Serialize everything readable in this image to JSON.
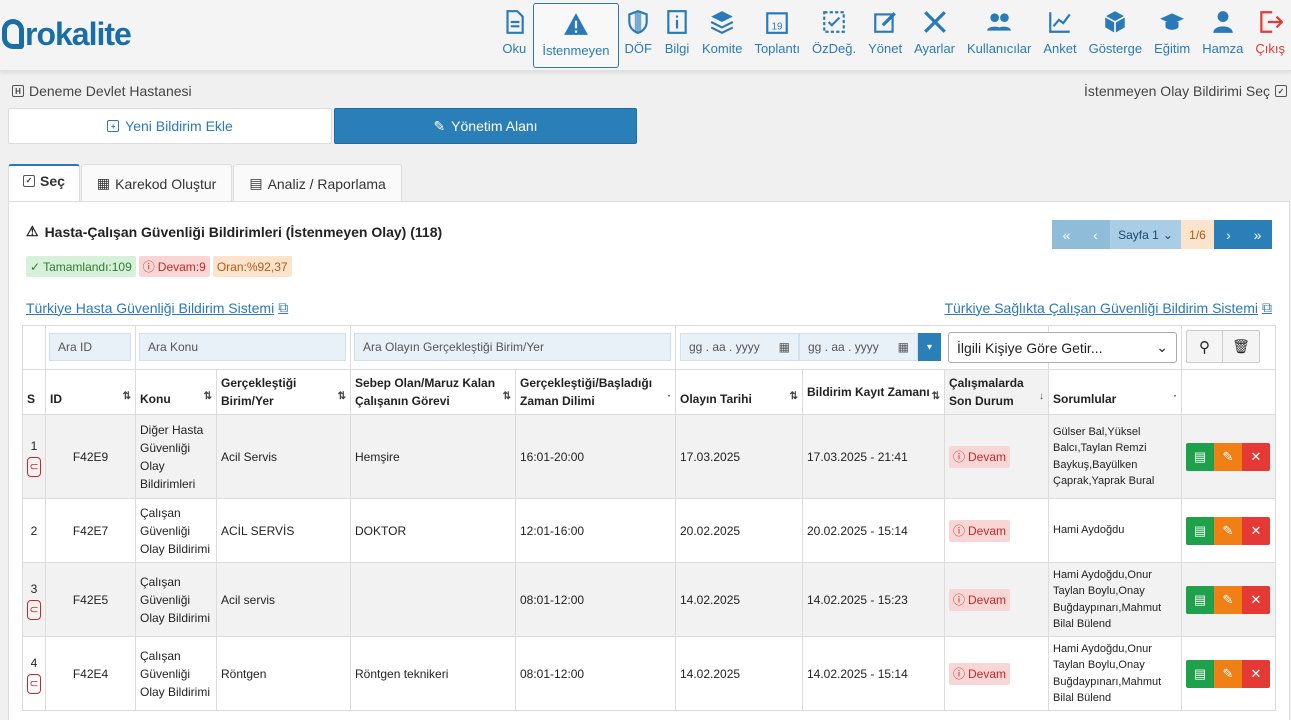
{
  "logo": "Prokalite",
  "nav": [
    {
      "label": "Oku",
      "icon": "document-icon"
    },
    {
      "label": "İstenmeyen",
      "icon": "warning-icon",
      "active": true
    },
    {
      "label": "DÖF",
      "icon": "shield-icon"
    },
    {
      "label": "Bilgi",
      "icon": "info-icon"
    },
    {
      "label": "Komite",
      "icon": "layers-icon"
    },
    {
      "label": "Toplantı",
      "icon": "calendar-icon"
    },
    {
      "label": "ÖzDeğ.",
      "icon": "checklist-icon"
    },
    {
      "label": "Yönet",
      "icon": "edit-icon"
    },
    {
      "label": "Ayarlar",
      "icon": "tools-icon"
    },
    {
      "label": "Kullanıcılar",
      "icon": "users-icon"
    },
    {
      "label": "Anket",
      "icon": "chart-icon"
    },
    {
      "label": "Gösterge",
      "icon": "cube-icon"
    },
    {
      "label": "Eğitim",
      "icon": "graduation-cap-icon"
    },
    {
      "label": "Hamza",
      "icon": "user-icon"
    },
    {
      "label": "Çıkış",
      "icon": "logout-icon"
    }
  ],
  "header": {
    "hospital": "Deneme Devlet Hastanesi",
    "select_link": "İstenmeyen Olay Bildirimi Seç",
    "new_button": "Yeni Bildirim Ekle",
    "admin_button": "Yönetim Alanı"
  },
  "tabs": [
    "Seç",
    "Karekod Oluştur",
    "Analiz / Raporlama"
  ],
  "panel": {
    "title": "Hasta-Çalışan Güvenliği Bildirimleri (İstenmeyen Olay) (118)",
    "badges": {
      "done": "Tamamlandı:109",
      "ongoing": "Devam:9",
      "ratio": "Oran:%92,37"
    },
    "pager": {
      "page": "Sayfa 1",
      "count": "1/6"
    },
    "link_left": "Türkiye Hasta Güvenliği Bildirim Sistemi",
    "link_right": "Türkiye Sağlıkta Çalışan Güvenliği Bildirim Sistemi"
  },
  "filters": {
    "id": "Ara ID",
    "konu": "Ara Konu",
    "birim": "Ara Olayın Gerçekleştiği Birim/Yer",
    "date1": "gg . aa . yyyy",
    "date2": "gg . aa . yyyy",
    "person": "İlgili Kişiye Göre Getir..."
  },
  "columns": {
    "s": "S",
    "id": "ID",
    "konu": "Konu",
    "birim": "Gerçekleştiği Birim/Yer",
    "gorev": "Sebep Olan/Maruz Kalan Çalışanın Görevi",
    "zaman": "Gerçekleştiği/Başladığı Zaman Dilimi",
    "tarih": "Olayın Tarihi",
    "kayit": "Bildirim Kayıt Zamanı",
    "durum": "Çalışmalarda Son Durum",
    "sorumlu": "Sorumlular"
  },
  "rows": [
    {
      "s": "1",
      "id": "F42E9",
      "konu": "Diğer Hasta Güvenliği Olay Bildirimleri",
      "birim": "Acil Servis",
      "gorev": "Hemşire",
      "zaman": "16:01-20:00",
      "tarih": "17.03.2025",
      "kayit": "17.03.2025 - 21:41",
      "durum": "Devam",
      "sorumlu": "Gülser Bal,Yüksel Balcı,Taylan Remzi Baykuş,Bayülken Çaprak,Yaprak Bural",
      "attach": true
    },
    {
      "s": "2",
      "id": "F42E7",
      "konu": "Çalışan Güvenliği Olay Bildirimi",
      "birim": "ACİL SERVİS",
      "gorev": "DOKTOR",
      "zaman": "12:01-16:00",
      "tarih": "20.02.2025",
      "kayit": "20.02.2025 - 15:14",
      "durum": "Devam",
      "sorumlu": "Hami Aydoğdu",
      "attach": false
    },
    {
      "s": "3",
      "id": "F42E5",
      "konu": "Çalışan Güvenliği Olay Bildirimi",
      "birim": "Acil servis",
      "gorev": "",
      "zaman": "08:01-12:00",
      "tarih": "14.02.2025",
      "kayit": "14.02.2025 - 15:23",
      "durum": "Devam",
      "sorumlu": "Hami Aydoğdu,Onur Taylan Boylu,Onay Buğdaypınarı,Mahmut Bilal Bülend",
      "attach": true
    },
    {
      "s": "4",
      "id": "F42E4",
      "konu": "Çalışan Güvenliği Olay Bildirimi",
      "birim": "Röntgen",
      "gorev": "Röntgen teknikeri",
      "zaman": "08:01-12:00",
      "tarih": "14.02.2025",
      "kayit": "14.02.2025 - 15:14",
      "durum": "Devam",
      "sorumlu": "Hami Aydoğdu,Onur Taylan Boylu,Onay Buğdaypınarı,Mahmut Bilal Bülend",
      "attach": true
    }
  ]
}
